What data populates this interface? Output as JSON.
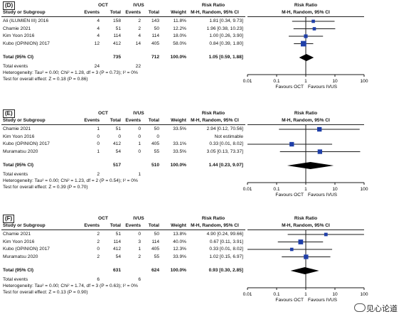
{
  "panels": [
    {
      "label": "(D)",
      "header": {
        "group1": "OCT",
        "group2": "IVUS",
        "effect": "Risk Ratio",
        "effect_sub": "M-H, Random, 95% CI",
        "plot_title": "Risk Ratio",
        "plot_sub": "M-H, Random, 95% CI"
      },
      "columns": {
        "study": "Study or Subgroup",
        "events": "Events",
        "total": "Total",
        "events2": "Events",
        "total2": "Total",
        "weight": "Weight"
      },
      "studies": [
        {
          "name": "Ali (ILUMIEN III) 2016",
          "e1": "4",
          "t1": "158",
          "e2": "2",
          "t2": "143",
          "w": "11.8%",
          "ci": "1.81 [0.34, 9.73]",
          "rr": 1.81,
          "lo": 0.34,
          "hi": 9.73
        },
        {
          "name": "Chamie 2021",
          "e1": "4",
          "t1": "51",
          "e2": "2",
          "t2": "50",
          "w": "12.2%",
          "ci": "1.96 [0.38, 10.23]",
          "rr": 1.96,
          "lo": 0.38,
          "hi": 10.23
        },
        {
          "name": "Kim Yoon 2016",
          "e1": "4",
          "t1": "114",
          "e2": "4",
          "t2": "114",
          "w": "18.0%",
          "ci": "1.00 [0.26, 3.90]",
          "rr": 1.0,
          "lo": 0.26,
          "hi": 3.9
        },
        {
          "name": "Kubo (OPINION) 2017",
          "e1": "12",
          "t1": "412",
          "e2": "14",
          "t2": "405",
          "w": "58.0%",
          "ci": "0.84 [0.39, 1.80]",
          "rr": 0.84,
          "lo": 0.39,
          "hi": 1.8
        }
      ],
      "total": {
        "name": "Total (95% CI)",
        "t1": "735",
        "t2": "712",
        "w": "100.0%",
        "ci": "1.05 [0.59, 1.88]",
        "rr": 1.05,
        "lo": 0.59,
        "hi": 1.88
      },
      "total_events": {
        "name": "Total events",
        "e1": "24",
        "e2": "22"
      },
      "heterogeneity": "Heterogeneity: Tau² = 0.00; Chi² = 1.28, df = 3 (P = 0.73); I² = 0%",
      "overall": "Test for overall effect: Z = 0.18 (P = 0.86)",
      "axis_ticks": [
        "0.01",
        "0.1",
        "1",
        "10",
        "100"
      ],
      "favours_left": "Favours OCT",
      "favours_right": "Favours IVUS"
    },
    {
      "label": "(E)",
      "header": {
        "group1": "OCT",
        "group2": "IVUS",
        "effect": "Risk Ratio",
        "effect_sub": "M-H, Random, 95% CI",
        "plot_title": "Risk Ratio",
        "plot_sub": "M-H, Random, 95% CI"
      },
      "columns": {
        "study": "Study or Subgroup",
        "events": "Events",
        "total": "Total",
        "events2": "Events",
        "total2": "Total",
        "weight": "Weight"
      },
      "studies": [
        {
          "name": "Chamie 2021",
          "e1": "1",
          "t1": "51",
          "e2": "0",
          "t2": "50",
          "w": "33.5%",
          "ci": "2.94 [0.12, 70.56]",
          "rr": 2.94,
          "lo": 0.12,
          "hi": 70.56
        },
        {
          "name": "Kim Yoon 2016",
          "e1": "0",
          "t1": "0",
          "e2": "0",
          "t2": "0",
          "w": "",
          "ci": "Not estimable",
          "rr": null,
          "lo": null,
          "hi": null
        },
        {
          "name": "Kubo (OPINION) 2017",
          "e1": "0",
          "t1": "412",
          "e2": "1",
          "t2": "405",
          "w": "33.1%",
          "ci": "0.33 [0.01, 8.02]",
          "rr": 0.33,
          "lo": 0.01,
          "hi": 8.02
        },
        {
          "name": "Muramatsu 2020",
          "e1": "1",
          "t1": "54",
          "e2": "0",
          "t2": "55",
          "w": "33.5%",
          "ci": "3.05 [0.13, 73.37]",
          "rr": 3.05,
          "lo": 0.13,
          "hi": 73.37
        }
      ],
      "total": {
        "name": "Total (95% CI)",
        "t1": "517",
        "t2": "510",
        "w": "100.0%",
        "ci": "1.44 [0.23, 9.07]",
        "rr": 1.44,
        "lo": 0.23,
        "hi": 9.07
      },
      "total_events": {
        "name": "Total events",
        "e1": "2",
        "e2": "1"
      },
      "heterogeneity": "Heterogeneity: Tau² = 0.00; Chi² = 1.23, df = 2 (P = 0.54); I² = 0%",
      "overall": "Test for overall effect: Z = 0.39 (P = 0.70)",
      "axis_ticks": [
        "0.01",
        "0.1",
        "1",
        "10",
        "100"
      ],
      "favours_left": "Favours OCT",
      "favours_right": "Favours IVUS"
    },
    {
      "label": "(F)",
      "header": {
        "group1": "OCT",
        "group2": "IVUS",
        "effect": "Risk Ratio",
        "effect_sub": "M-H, Random, 95% CI",
        "plot_title": "Risk Ratio",
        "plot_sub": "M-H, Random, 95% CI"
      },
      "columns": {
        "study": "Study or Subgroup",
        "events": "Events",
        "total": "Total",
        "events2": "Events",
        "total2": "Total",
        "weight": "Weight"
      },
      "studies": [
        {
          "name": "Chamie 2021",
          "e1": "2",
          "t1": "51",
          "e2": "0",
          "t2": "50",
          "w": "13.8%",
          "ci": "4.90 [0.24, 99.66]",
          "rr": 4.9,
          "lo": 0.24,
          "hi": 99.66
        },
        {
          "name": "Kim Yoon 2016",
          "e1": "2",
          "t1": "114",
          "e2": "3",
          "t2": "114",
          "w": "40.0%",
          "ci": "0.67 [0.11, 3.91]",
          "rr": 0.67,
          "lo": 0.11,
          "hi": 3.91
        },
        {
          "name": "Kubo (OPINION) 2017",
          "e1": "0",
          "t1": "412",
          "e2": "1",
          "t2": "405",
          "w": "12.3%",
          "ci": "0.33 [0.01, 8.02]",
          "rr": 0.33,
          "lo": 0.01,
          "hi": 8.02
        },
        {
          "name": "Muramatsu 2020",
          "e1": "2",
          "t1": "54",
          "e2": "2",
          "t2": "55",
          "w": "33.9%",
          "ci": "1.02 [0.15, 6.97]",
          "rr": 1.02,
          "lo": 0.15,
          "hi": 6.97
        }
      ],
      "total": {
        "name": "Total (95% CI)",
        "t1": "631",
        "t2": "624",
        "w": "100.0%",
        "ci": "0.93 [0.30, 2.85]",
        "rr": 0.93,
        "lo": 0.3,
        "hi": 2.85
      },
      "total_events": {
        "name": "Total events",
        "e1": "6",
        "e2": "6"
      },
      "heterogeneity": "Heterogeneity: Tau² = 0.00; Chi² = 1.74, df = 3 (P = 0.63); I² = 0%",
      "overall": "Test for overall effect: Z = 0.13 (P = 0.90)",
      "axis_ticks": [
        "0.01",
        "0.1",
        "1",
        "10",
        "100"
      ],
      "favours_left": "Favours OCT",
      "favours_right": "Favours IVUS"
    }
  ],
  "watermark": "见心论道",
  "colors": {
    "marker": "#1f3fa8",
    "line": "#1a1a1a",
    "diamond": "#000000"
  },
  "chart_data": [
    {
      "type": "forest",
      "scale": "log",
      "xlim": [
        0.01,
        100
      ],
      "categories": [
        "Ali (ILUMIEN III) 2016",
        "Chamie 2021",
        "Kim Yoon 2016",
        "Kubo (OPINION) 2017",
        "Total (95% CI)"
      ],
      "values": [
        1.81,
        1.96,
        1.0,
        0.84,
        1.05
      ],
      "lower": [
        0.34,
        0.38,
        0.26,
        0.39,
        0.59
      ],
      "upper": [
        9.73,
        10.23,
        3.9,
        1.8,
        1.88
      ]
    },
    {
      "type": "forest",
      "scale": "log",
      "xlim": [
        0.01,
        100
      ],
      "categories": [
        "Chamie 2021",
        "Kim Yoon 2016",
        "Kubo (OPINION) 2017",
        "Muramatsu 2020",
        "Total (95% CI)"
      ],
      "values": [
        2.94,
        null,
        0.33,
        3.05,
        1.44
      ],
      "lower": [
        0.12,
        null,
        0.01,
        0.13,
        0.23
      ],
      "upper": [
        70.56,
        null,
        8.02,
        73.37,
        9.07
      ]
    },
    {
      "type": "forest",
      "scale": "log",
      "xlim": [
        0.01,
        100
      ],
      "categories": [
        "Chamie 2021",
        "Kim Yoon 2016",
        "Kubo (OPINION) 2017",
        "Muramatsu 2020",
        "Total (95% CI)"
      ],
      "values": [
        4.9,
        0.67,
        0.33,
        1.02,
        0.93
      ],
      "lower": [
        0.24,
        0.11,
        0.01,
        0.15,
        0.3
      ],
      "upper": [
        99.66,
        3.91,
        8.02,
        6.97,
        2.85
      ]
    }
  ]
}
